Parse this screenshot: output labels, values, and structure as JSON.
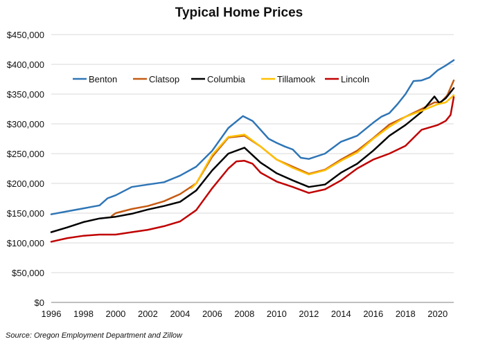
{
  "chart_data": {
    "type": "line",
    "title": "Typical Home Prices",
    "source": "Source: Oregon Employment Department and Zillow",
    "xlabel": "",
    "ylabel": "",
    "xlim": [
      1996,
      2021
    ],
    "ylim": [
      0,
      450000
    ],
    "x_ticks": [
      1996,
      1998,
      2000,
      2002,
      2004,
      2006,
      2008,
      2010,
      2012,
      2014,
      2016,
      2018,
      2020
    ],
    "x_tick_labels": [
      "1996",
      "1998",
      "2000",
      "2002",
      "2004",
      "2006",
      "2008",
      "2010",
      "2012",
      "2014",
      "2016",
      "2018",
      "2020"
    ],
    "y_ticks": [
      0,
      50000,
      100000,
      150000,
      200000,
      250000,
      300000,
      350000,
      400000,
      450000
    ],
    "y_tick_labels": [
      "$0",
      "$50,000",
      "$100,000",
      "$150,000",
      "$200,000",
      "$250,000",
      "$300,000",
      "$350,000",
      "$400,000",
      "$450,000"
    ],
    "grid": "horizontal",
    "legend_position": "top-left",
    "series": [
      {
        "name": "Benton",
        "color": "#2E75B6",
        "x": [
          1996,
          1997,
          1998,
          1999,
          1999.5,
          2000,
          2001,
          2002,
          2003,
          2004,
          2005,
          2006,
          2007,
          2007.9,
          2008.5,
          2009,
          2009.5,
          2010,
          2010.5,
          2011,
          2011.5,
          2012,
          2013,
          2014,
          2015,
          2016,
          2016.5,
          2017,
          2017.5,
          2018,
          2018.5,
          2019,
          2019.5,
          2020,
          2020.5,
          2021
        ],
        "y": [
          148000,
          153000,
          158000,
          163000,
          175000,
          180000,
          194000,
          198000,
          202000,
          213000,
          228000,
          255000,
          293000,
          313000,
          305000,
          290000,
          275000,
          268000,
          262000,
          257000,
          243000,
          241000,
          250000,
          270000,
          280000,
          302000,
          312000,
          318000,
          333000,
          350000,
          372000,
          373000,
          378000,
          390000,
          398000,
          407000
        ]
      },
      {
        "name": "Clatsop",
        "color": "#C55A11",
        "x": [
          1999.75,
          2000,
          2001,
          2002,
          2003,
          2004,
          2005,
          2006,
          2007,
          2008,
          2009,
          2010,
          2011,
          2012,
          2013,
          2014,
          2015,
          2016,
          2017,
          2018,
          2019,
          2019.8,
          2020.2,
          2020.6,
          2021
        ],
        "y": [
          145000,
          150000,
          157000,
          162000,
          170000,
          182000,
          200000,
          245000,
          277000,
          280000,
          262000,
          240000,
          228000,
          216000,
          223000,
          240000,
          255000,
          276000,
          299000,
          312000,
          325000,
          336000,
          336000,
          348000,
          373000
        ]
      },
      {
        "name": "Columbia",
        "color": "#000000",
        "x": [
          1996,
          1997,
          1998,
          1999,
          2000,
          2001,
          2002,
          2003,
          2004,
          2005,
          2006,
          2007,
          2008,
          2009,
          2010,
          2011,
          2012,
          2013,
          2014,
          2015,
          2016,
          2017,
          2018,
          2019,
          2019.8,
          2020.1,
          2020.5,
          2021
        ],
        "y": [
          118000,
          126000,
          135000,
          141000,
          144000,
          149000,
          156000,
          162000,
          169000,
          188000,
          222000,
          250000,
          260000,
          235000,
          217000,
          205000,
          194000,
          198000,
          218000,
          233000,
          255000,
          280000,
          298000,
          320000,
          346000,
          335000,
          343000,
          360000
        ]
      },
      {
        "name": "Tillamook",
        "color": "#FFC000",
        "x": [
          2004.7,
          2005,
          2006,
          2007,
          2008,
          2009,
          2010,
          2011,
          2012,
          2013,
          2014,
          2015,
          2016,
          2017,
          2018,
          2019,
          2020,
          2020.5,
          2021
        ],
        "y": [
          192000,
          200000,
          248000,
          278000,
          282000,
          262000,
          240000,
          226000,
          215000,
          222000,
          238000,
          252000,
          275000,
          295000,
          312000,
          322000,
          333000,
          336000,
          348000
        ]
      },
      {
        "name": "Lincoln",
        "color": "#C00000",
        "x": [
          1996,
          1997,
          1998,
          1999,
          2000,
          2001,
          2002,
          2003,
          2004,
          2005,
          2006,
          2007,
          2007.5,
          2008,
          2008.5,
          2009,
          2010,
          2011,
          2012,
          2013,
          2014,
          2015,
          2016,
          2017,
          2018,
          2019,
          2020,
          2020.5,
          2020.8,
          2021
        ],
        "y": [
          102000,
          108000,
          112000,
          114000,
          114000,
          118000,
          122000,
          128000,
          136000,
          155000,
          192000,
          225000,
          237000,
          238000,
          233000,
          218000,
          203000,
          194000,
          184000,
          190000,
          205000,
          225000,
          240000,
          250000,
          263000,
          290000,
          298000,
          305000,
          315000,
          345000
        ]
      }
    ]
  }
}
